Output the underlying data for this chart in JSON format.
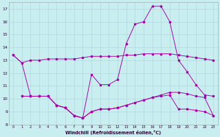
{
  "xlabel": "Windchill (Refroidissement éolien,°C)",
  "background_color": "#c8eef0",
  "grid_color": "#b0d8dc",
  "line_color": "#aa00aa",
  "xlim": [
    -0.5,
    23.5
  ],
  "ylim": [
    8,
    17.5
  ],
  "yticks": [
    8,
    9,
    10,
    11,
    12,
    13,
    14,
    15,
    16,
    17
  ],
  "xticks": [
    0,
    1,
    2,
    3,
    4,
    5,
    6,
    7,
    8,
    9,
    10,
    11,
    12,
    13,
    14,
    15,
    16,
    17,
    18,
    19,
    20,
    21,
    22,
    23
  ],
  "series1_x": [
    0,
    1,
    2,
    3,
    4,
    5,
    6,
    7,
    8,
    9,
    10,
    11,
    12,
    13,
    14,
    15,
    16,
    17,
    18,
    19,
    20,
    21,
    22,
    23
  ],
  "series1_y": [
    13.4,
    12.8,
    13.0,
    13.0,
    13.1,
    13.1,
    13.1,
    13.1,
    13.2,
    13.3,
    13.3,
    13.3,
    13.3,
    13.4,
    13.4,
    13.5,
    13.5,
    13.5,
    13.5,
    13.4,
    13.3,
    13.2,
    13.1,
    13.0
  ],
  "series2_x": [
    0,
    1,
    2,
    3,
    4,
    5,
    6,
    7,
    8,
    9,
    10,
    11,
    12,
    13,
    14,
    15,
    16,
    17,
    18,
    19,
    20,
    21,
    22,
    23
  ],
  "series2_y": [
    13.4,
    12.8,
    10.2,
    10.2,
    10.2,
    9.5,
    9.3,
    8.7,
    8.5,
    11.9,
    11.1,
    11.1,
    11.5,
    14.3,
    15.8,
    16.0,
    17.2,
    17.2,
    16.0,
    13.0,
    12.1,
    11.1,
    10.3,
    10.2
  ],
  "series3_x": [
    1,
    2,
    3,
    4,
    5,
    6,
    7,
    8,
    9,
    10,
    11,
    12,
    13,
    14,
    15,
    16,
    17,
    18,
    19,
    20,
    21,
    22,
    23
  ],
  "series3_y": [
    10.2,
    10.2,
    10.2,
    10.2,
    9.5,
    9.3,
    8.7,
    8.5,
    9.0,
    9.2,
    9.2,
    9.3,
    9.5,
    9.7,
    9.9,
    10.1,
    10.3,
    10.5,
    10.5,
    10.4,
    10.2,
    10.1,
    8.7
  ],
  "series4_x": [
    1,
    2,
    3,
    4,
    5,
    6,
    7,
    8,
    9,
    10,
    11,
    12,
    13,
    14,
    15,
    16,
    17,
    18,
    19,
    20,
    21,
    22,
    23
  ],
  "series4_y": [
    10.2,
    10.2,
    10.2,
    10.2,
    9.5,
    9.3,
    8.7,
    8.5,
    9.0,
    9.2,
    9.2,
    9.3,
    9.5,
    9.7,
    9.9,
    10.1,
    10.2,
    10.3,
    9.2,
    9.2,
    9.1,
    9.0,
    8.7
  ]
}
